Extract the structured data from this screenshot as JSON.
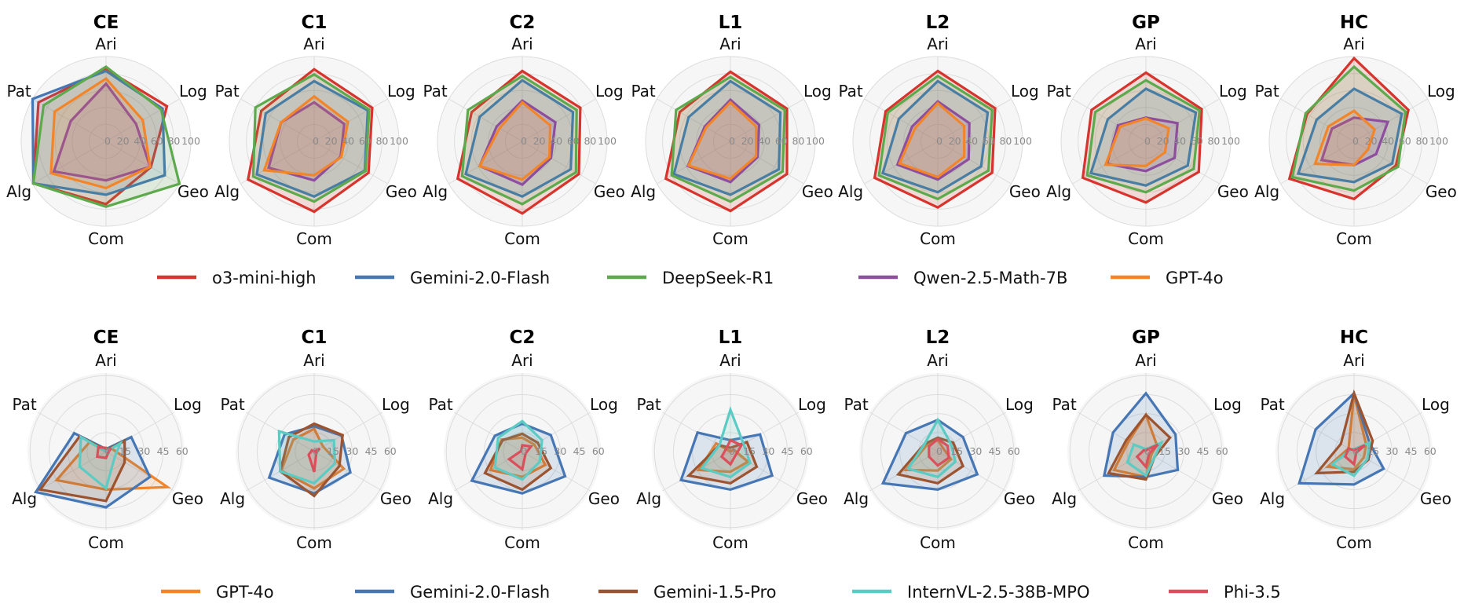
{
  "chart_data": [
    {
      "type": "radar",
      "row": "top",
      "axes": [
        "Ari",
        "Log",
        "Geo",
        "Com",
        "Alg",
        "Pat"
      ],
      "rlim": [
        0,
        100
      ],
      "ticks": [
        "0",
        "20",
        "40",
        "60",
        "80",
        "100"
      ],
      "tick_values": [
        0,
        20,
        40,
        60,
        80,
        100
      ],
      "legend": [
        {
          "name": "o3-mini-high",
          "color": "#d6342c"
        },
        {
          "name": "Gemini-2.0-Flash",
          "color": "#4677b4"
        },
        {
          "name": "DeepSeek-R1",
          "color": "#5daa4c"
        },
        {
          "name": "Qwen-2.5-Math-7B",
          "color": "#8d4e9e"
        },
        {
          "name": "GPT-4o",
          "color": "#f28529"
        }
      ],
      "panels": [
        {
          "title": "CE",
          "series": [
            [
              85,
              83,
              61,
              74,
              99,
              92
            ],
            [
              83,
              77,
              80,
              63,
              99,
              100
            ],
            [
              88,
              75,
              100,
              77,
              99,
              85
            ],
            [
              68,
              41,
              60,
              46,
              71,
              48
            ],
            [
              74,
              50,
              60,
              55,
              75,
              70
            ]
          ]
        },
        {
          "title": "C1",
          "series": [
            [
              85,
              79,
              74,
              83,
              90,
              72
            ],
            [
              71,
              73,
              69,
              65,
              78,
              66
            ],
            [
              79,
              75,
              70,
              71,
              83,
              80
            ],
            [
              46,
              41,
              36,
              46,
              62,
              45
            ],
            [
              53,
              46,
              37,
              40,
              68,
              45
            ]
          ]
        },
        {
          "title": "C2",
          "series": [
            [
              83,
              79,
              77,
              85,
              88,
              69
            ],
            [
              72,
              69,
              66,
              65,
              77,
              58
            ],
            [
              77,
              74,
              73,
              74,
              82,
              74
            ],
            [
              48,
              45,
              39,
              51,
              58,
              35
            ],
            [
              46,
              38,
              37,
              45,
              58,
              31
            ]
          ]
        },
        {
          "title": "L1",
          "series": [
            [
              82,
              77,
              77,
              82,
              88,
              69
            ],
            [
              71,
              68,
              66,
              63,
              77,
              57
            ],
            [
              76,
              74,
              71,
              71,
              80,
              74
            ],
            [
              49,
              39,
              37,
              48,
              58,
              35
            ],
            [
              46,
              35,
              35,
              44,
              57,
              33
            ]
          ]
        },
        {
          "title": "L2",
          "series": [
            [
              83,
              78,
              74,
              78,
              86,
              71
            ],
            [
              71,
              68,
              59,
              60,
              75,
              53
            ],
            [
              77,
              74,
              69,
              68,
              80,
              68
            ],
            [
              47,
              43,
              42,
              45,
              55,
              35
            ],
            [
              45,
              36,
              36,
              42,
              52,
              31
            ]
          ]
        },
        {
          "title": "GP",
          "series": [
            [
              81,
              76,
              72,
              72,
              86,
              74
            ],
            [
              62,
              68,
              57,
              52,
              75,
              52
            ],
            [
              72,
              73,
              65,
              60,
              80,
              69
            ],
            [
              28,
              43,
              39,
              35,
              53,
              38
            ],
            [
              27,
              31,
              26,
              29,
              55,
              35
            ]
          ]
        },
        {
          "title": "HC",
          "series": [
            [
              98,
              74,
              57,
              68,
              88,
              64
            ],
            [
              62,
              65,
              52,
              48,
              76,
              51
            ],
            [
              88,
              70,
              60,
              58,
              84,
              66
            ],
            [
              28,
              46,
              30,
              28,
              44,
              30
            ],
            [
              36,
              28,
              19,
              28,
              53,
              35
            ]
          ]
        }
      ]
    },
    {
      "type": "radar",
      "row": "bottom",
      "axes": [
        "Ari",
        "Log",
        "Geo",
        "Com",
        "Alg",
        "Pat"
      ],
      "rlim": [
        0,
        62
      ],
      "ticks": [
        "0",
        "15",
        "30",
        "45",
        "60"
      ],
      "tick_values": [
        0,
        15,
        30,
        45,
        60
      ],
      "legend": [
        {
          "name": "GPT-4o",
          "color": "#f28529"
        },
        {
          "name": "Gemini-2.0-Flash",
          "color": "#4677b4"
        },
        {
          "name": "Gemini-1.5-Pro",
          "color": "#9c5430"
        },
        {
          "name": "InternVL-2.5-38B-MPO",
          "color": "#5ccbc3"
        },
        {
          "name": "Phi-3.5",
          "color": "#d9505c"
        }
      ],
      "panels": [
        {
          "title": "CE",
          "series": [
            [
              0,
              5,
              56,
              30,
              45,
              15
            ],
            [
              2,
              23,
              40,
              44,
              64,
              29
            ],
            [
              1,
              17,
              17,
              39,
              60,
              24
            ],
            [
              0,
              13,
              8,
              29,
              24,
              23
            ],
            [
              3,
              4,
              2,
              5,
              8,
              7
            ]
          ]
        },
        {
          "title": "C1",
          "series": [
            [
              18,
              8,
              27,
              29,
              30,
              19
            ],
            [
              20,
              25,
              33,
              33,
              41,
              27
            ],
            [
              22,
              26,
              23,
              35,
              31,
              23
            ],
            [
              8,
              18,
              19,
              25,
              31,
              32
            ],
            [
              0,
              5,
              2,
              16,
              5,
              2
            ]
          ]
        },
        {
          "title": "C2",
          "series": [
            [
              11,
              11,
              21,
              20,
              29,
              19
            ],
            [
              22,
              26,
              39,
              33,
              46,
              25
            ],
            [
              14,
              14,
              26,
              30,
              34,
              18
            ],
            [
              24,
              18,
              16,
              22,
              25,
              22
            ],
            [
              5,
              8,
              3,
              14,
              12,
              1
            ]
          ]
        },
        {
          "title": "L1",
          "series": [
            [
              0,
              3,
              16,
              16,
              29,
              13
            ],
            [
              9,
              27,
              38,
              30,
              45,
              30
            ],
            [
              3,
              15,
              24,
              25,
              38,
              10
            ],
            [
              33,
              12,
              18,
              20,
              26,
              10
            ],
            [
              9,
              10,
              5,
              10,
              8,
              4
            ]
          ]
        },
        {
          "title": "L2",
          "series": [
            [
              9,
              5,
              12,
              15,
              29,
              10
            ],
            [
              25,
              23,
              36,
              30,
              50,
              29
            ],
            [
              11,
              14,
              23,
              25,
              36,
              12
            ],
            [
              25,
              12,
              16,
              20,
              27,
              12
            ],
            [
              10,
              9,
              10,
              11,
              8,
              8
            ]
          ]
        },
        {
          "title": "GP",
          "series": [
            [
              29,
              10,
              5,
              20,
              29,
              16
            ],
            [
              46,
              27,
              29,
              20,
              38,
              30
            ],
            [
              29,
              22,
              8,
              22,
              34,
              18
            ],
            [
              2,
              14,
              8,
              19,
              17,
              11
            ],
            [
              1,
              11,
              3,
              12,
              8,
              2
            ]
          ]
        },
        {
          "title": "HC",
          "series": [
            [
              45,
              11,
              9,
              14,
              24,
              5
            ],
            [
              46,
              14,
              27,
              26,
              50,
              35
            ],
            [
              46,
              17,
              13,
              16,
              34,
              12
            ],
            [
              2,
              14,
              12,
              19,
              20,
              3
            ],
            [
              1,
              10,
              2,
              10,
              8,
              5
            ]
          ]
        }
      ]
    }
  ]
}
